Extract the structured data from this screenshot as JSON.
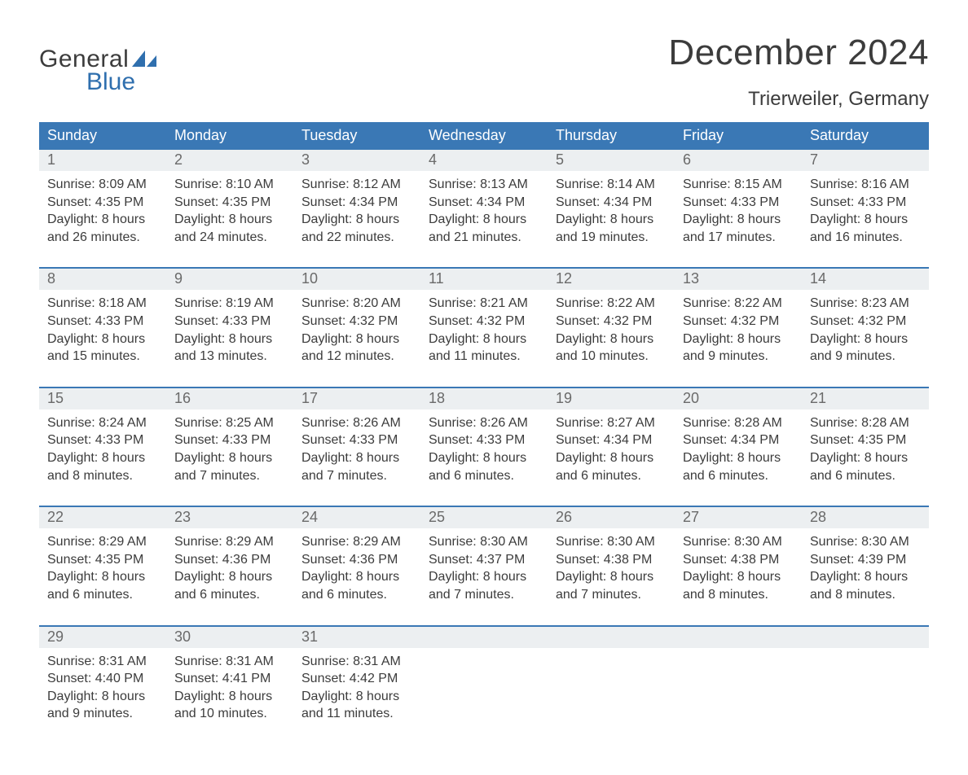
{
  "logo": {
    "text_top": "General",
    "text_bottom": "Blue",
    "text_color": "#3c3c3c",
    "accent_color": "#2f6fae"
  },
  "title": "December 2024",
  "location": "Trierweiler, Germany",
  "colors": {
    "header_bg": "#3a78b5",
    "header_text": "#ffffff",
    "daynum_bg": "#eceff1",
    "daynum_text": "#6a6a6a",
    "body_text": "#3c3c3c",
    "week_divider": "#3a78b5",
    "page_bg": "#ffffff"
  },
  "typography": {
    "title_fontsize": 44,
    "location_fontsize": 24,
    "dow_fontsize": 18,
    "daynum_fontsize": 18,
    "body_fontsize": 16
  },
  "days_of_week": [
    "Sunday",
    "Monday",
    "Tuesday",
    "Wednesday",
    "Thursday",
    "Friday",
    "Saturday"
  ],
  "labels": {
    "sunrise": "Sunrise:",
    "sunset": "Sunset:",
    "daylight": "Daylight:"
  },
  "weeks": [
    [
      {
        "n": "1",
        "sunrise": "8:09 AM",
        "sunset": "4:35 PM",
        "dl1": "8 hours",
        "dl2": "and 26 minutes."
      },
      {
        "n": "2",
        "sunrise": "8:10 AM",
        "sunset": "4:35 PM",
        "dl1": "8 hours",
        "dl2": "and 24 minutes."
      },
      {
        "n": "3",
        "sunrise": "8:12 AM",
        "sunset": "4:34 PM",
        "dl1": "8 hours",
        "dl2": "and 22 minutes."
      },
      {
        "n": "4",
        "sunrise": "8:13 AM",
        "sunset": "4:34 PM",
        "dl1": "8 hours",
        "dl2": "and 21 minutes."
      },
      {
        "n": "5",
        "sunrise": "8:14 AM",
        "sunset": "4:34 PM",
        "dl1": "8 hours",
        "dl2": "and 19 minutes."
      },
      {
        "n": "6",
        "sunrise": "8:15 AM",
        "sunset": "4:33 PM",
        "dl1": "8 hours",
        "dl2": "and 17 minutes."
      },
      {
        "n": "7",
        "sunrise": "8:16 AM",
        "sunset": "4:33 PM",
        "dl1": "8 hours",
        "dl2": "and 16 minutes."
      }
    ],
    [
      {
        "n": "8",
        "sunrise": "8:18 AM",
        "sunset": "4:33 PM",
        "dl1": "8 hours",
        "dl2": "and 15 minutes."
      },
      {
        "n": "9",
        "sunrise": "8:19 AM",
        "sunset": "4:33 PM",
        "dl1": "8 hours",
        "dl2": "and 13 minutes."
      },
      {
        "n": "10",
        "sunrise": "8:20 AM",
        "sunset": "4:32 PM",
        "dl1": "8 hours",
        "dl2": "and 12 minutes."
      },
      {
        "n": "11",
        "sunrise": "8:21 AM",
        "sunset": "4:32 PM",
        "dl1": "8 hours",
        "dl2": "and 11 minutes."
      },
      {
        "n": "12",
        "sunrise": "8:22 AM",
        "sunset": "4:32 PM",
        "dl1": "8 hours",
        "dl2": "and 10 minutes."
      },
      {
        "n": "13",
        "sunrise": "8:22 AM",
        "sunset": "4:32 PM",
        "dl1": "8 hours",
        "dl2": "and 9 minutes."
      },
      {
        "n": "14",
        "sunrise": "8:23 AM",
        "sunset": "4:32 PM",
        "dl1": "8 hours",
        "dl2": "and 9 minutes."
      }
    ],
    [
      {
        "n": "15",
        "sunrise": "8:24 AM",
        "sunset": "4:33 PM",
        "dl1": "8 hours",
        "dl2": "and 8 minutes."
      },
      {
        "n": "16",
        "sunrise": "8:25 AM",
        "sunset": "4:33 PM",
        "dl1": "8 hours",
        "dl2": "and 7 minutes."
      },
      {
        "n": "17",
        "sunrise": "8:26 AM",
        "sunset": "4:33 PM",
        "dl1": "8 hours",
        "dl2": "and 7 minutes."
      },
      {
        "n": "18",
        "sunrise": "8:26 AM",
        "sunset": "4:33 PM",
        "dl1": "8 hours",
        "dl2": "and 6 minutes."
      },
      {
        "n": "19",
        "sunrise": "8:27 AM",
        "sunset": "4:34 PM",
        "dl1": "8 hours",
        "dl2": "and 6 minutes."
      },
      {
        "n": "20",
        "sunrise": "8:28 AM",
        "sunset": "4:34 PM",
        "dl1": "8 hours",
        "dl2": "and 6 minutes."
      },
      {
        "n": "21",
        "sunrise": "8:28 AM",
        "sunset": "4:35 PM",
        "dl1": "8 hours",
        "dl2": "and 6 minutes."
      }
    ],
    [
      {
        "n": "22",
        "sunrise": "8:29 AM",
        "sunset": "4:35 PM",
        "dl1": "8 hours",
        "dl2": "and 6 minutes."
      },
      {
        "n": "23",
        "sunrise": "8:29 AM",
        "sunset": "4:36 PM",
        "dl1": "8 hours",
        "dl2": "and 6 minutes."
      },
      {
        "n": "24",
        "sunrise": "8:29 AM",
        "sunset": "4:36 PM",
        "dl1": "8 hours",
        "dl2": "and 6 minutes."
      },
      {
        "n": "25",
        "sunrise": "8:30 AM",
        "sunset": "4:37 PM",
        "dl1": "8 hours",
        "dl2": "and 7 minutes."
      },
      {
        "n": "26",
        "sunrise": "8:30 AM",
        "sunset": "4:38 PM",
        "dl1": "8 hours",
        "dl2": "and 7 minutes."
      },
      {
        "n": "27",
        "sunrise": "8:30 AM",
        "sunset": "4:38 PM",
        "dl1": "8 hours",
        "dl2": "and 8 minutes."
      },
      {
        "n": "28",
        "sunrise": "8:30 AM",
        "sunset": "4:39 PM",
        "dl1": "8 hours",
        "dl2": "and 8 minutes."
      }
    ],
    [
      {
        "n": "29",
        "sunrise": "8:31 AM",
        "sunset": "4:40 PM",
        "dl1": "8 hours",
        "dl2": "and 9 minutes."
      },
      {
        "n": "30",
        "sunrise": "8:31 AM",
        "sunset": "4:41 PM",
        "dl1": "8 hours",
        "dl2": "and 10 minutes."
      },
      {
        "n": "31",
        "sunrise": "8:31 AM",
        "sunset": "4:42 PM",
        "dl1": "8 hours",
        "dl2": "and 11 minutes."
      },
      null,
      null,
      null,
      null
    ]
  ]
}
